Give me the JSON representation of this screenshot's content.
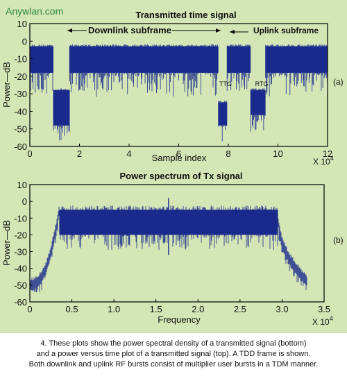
{
  "watermark": "Anywlan.com",
  "colors": {
    "signal": "#1a2a8c",
    "panel": "#d4e6b6",
    "frame": "#000000"
  },
  "caption": {
    "line1": "4. These plots show the power spectral density of a transmitted signal (bottom)",
    "line2": "and a power versus time plot of a transmitted signal (top). A TDD frame is shown.",
    "line3": "Both downlink and uplink RF bursts consist of multiplier user bursts in a TDM manner."
  },
  "chart_data": [
    {
      "type": "area",
      "title": "Transmitted time signal",
      "xlabel": "Sample index",
      "ylabel": "Power—dB",
      "x_multiplier_label": "X 10",
      "x_multiplier_exp": "4",
      "panel_label": "(a)",
      "xlim": [
        0,
        12
      ],
      "ylim": [
        -60,
        10
      ],
      "x_ticks": [
        "0",
        "2",
        "4",
        "6",
        "8",
        "10",
        "12"
      ],
      "y_ticks": [
        "10",
        "0",
        "-10",
        "-20",
        "-30",
        "-40",
        "-50",
        "-60"
      ],
      "grid": false,
      "annotations": {
        "downlink": "Downlink subframe",
        "uplink": "Uplink subframe",
        "ttg": "TTG",
        "rtg": "RTG"
      },
      "segments": [
        {
          "x": [
            0,
            0.95
          ],
          "level": [
            -3,
            -18
          ],
          "floor": -30
        },
        {
          "x": [
            0.95,
            1.6
          ],
          "level": [
            -28,
            -48
          ],
          "floor": -60
        },
        {
          "x": [
            1.6,
            7.6
          ],
          "level": [
            -3,
            -18
          ],
          "floor": -32
        },
        {
          "x": [
            7.6,
            7.95
          ],
          "level": [
            -35,
            -48
          ],
          "floor": -58
        },
        {
          "x": [
            7.95,
            8.9
          ],
          "level": [
            -3,
            -18
          ],
          "floor": -30
        },
        {
          "x": [
            8.9,
            9.5
          ],
          "level": [
            -28,
            -42
          ],
          "floor": -52
        },
        {
          "x": [
            9.5,
            12
          ],
          "level": [
            -3,
            -18
          ],
          "floor": -32
        }
      ]
    },
    {
      "type": "area",
      "title": "Power spectrum of Tx signal",
      "xlabel": "Frequency",
      "ylabel": "Power—dB",
      "x_multiplier_label": "X 10",
      "x_multiplier_exp": "4",
      "panel_label": "(b)",
      "xlim": [
        0,
        3.5
      ],
      "ylim": [
        -60,
        10
      ],
      "x_ticks": [
        "0",
        "0.5",
        "1.0",
        "1.5",
        "2.0",
        "2.5",
        "3.0",
        "3.5"
      ],
      "y_ticks": [
        "10",
        "0",
        "-10",
        "-20",
        "-30",
        "-40",
        "-50",
        "-60"
      ],
      "grid": false,
      "band": {
        "x_start": 0.35,
        "x_end": 2.95,
        "top": -5,
        "bottom": -20
      },
      "edges": {
        "left_low": -50,
        "right_low": -48,
        "notch_x": 1.65,
        "notch_depth": -32
      }
    }
  ]
}
